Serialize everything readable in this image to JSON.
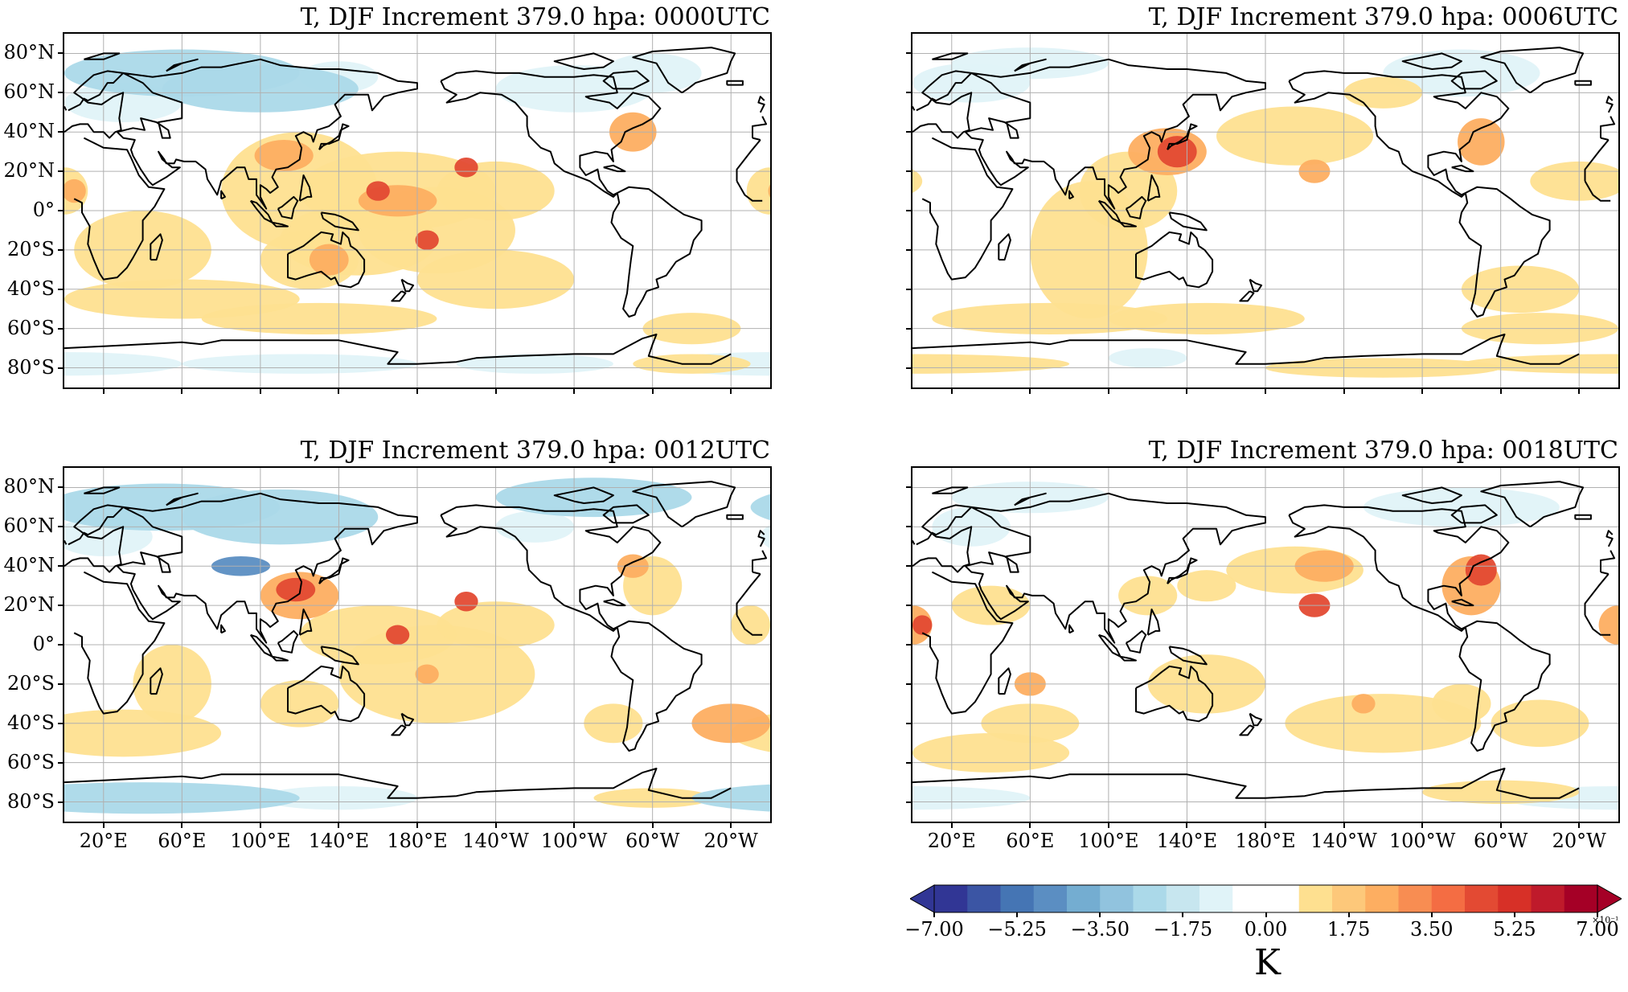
{
  "panels": [
    {
      "title": "T, DJF Increment 379.0 hpa:  0000UTC"
    },
    {
      "title": "T, DJF Increment 379.0 hpa:  0006UTC"
    },
    {
      "title": "T, DJF Increment 379.0 hpa:  0012UTC"
    },
    {
      "title": "T, DJF Increment 379.0 hpa:  0018UTC"
    }
  ],
  "lat_ticks": [
    "80°N",
    "60°N",
    "40°N",
    "20°N",
    "0°",
    "20°S",
    "40°S",
    "60°S",
    "80°S"
  ],
  "lon_ticks": [
    "20°E",
    "60°E",
    "100°E",
    "140°E",
    "180°E",
    "140°W",
    "100°W",
    "60°W",
    "20°W"
  ],
  "colorbar": {
    "ticks": [
      "−7.00",
      "−5.25",
      "−3.50",
      "−1.75",
      "0.00",
      "1.75",
      "3.50",
      "5.25",
      "7.00"
    ],
    "unit": "K",
    "scale_note": "×10⁻¹",
    "range": [
      -7.0,
      7.0
    ],
    "colors": [
      "#313695",
      "#3b55a4",
      "#4575b4",
      "#5b8ec2",
      "#74add1",
      "#91c3de",
      "#abd9e9",
      "#c7e6ef",
      "#e0f3f8",
      "#ffffff",
      "#ffffff",
      "#fee090",
      "#fdc87a",
      "#fdae61",
      "#f88d52",
      "#f46d43",
      "#e34a33",
      "#d73027",
      "#bf1a2b",
      "#a50026"
    ]
  },
  "palette": {
    "cold": "#abd9e9",
    "cool": "#e0f3f8",
    "warm": "#fee090",
    "warmer": "#fdae61",
    "hot": "#d73027",
    "coast": "#000000",
    "grid": "#b0b0b0"
  }
}
